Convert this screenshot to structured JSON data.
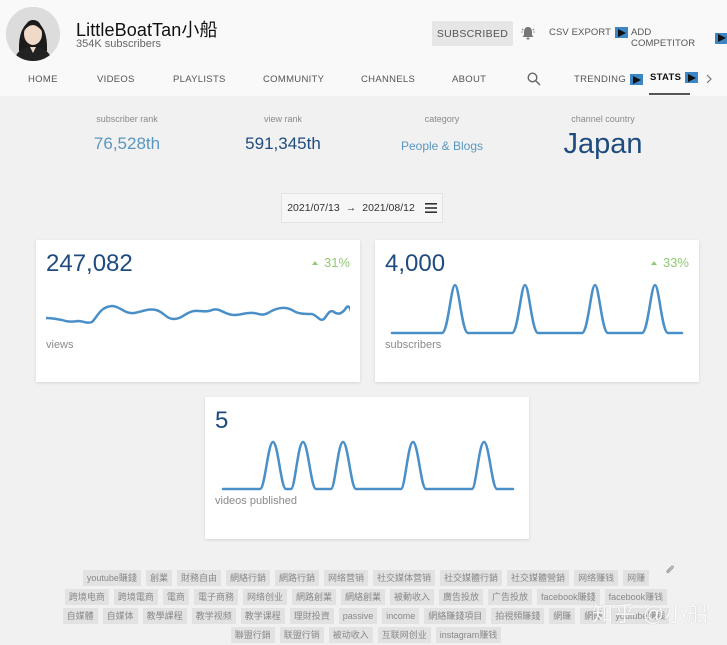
{
  "channel": {
    "name": "LittleBoatTan小船",
    "subscribers": "354K subscribers",
    "avatar": "avatar"
  },
  "header": {
    "subscribed_label": "SUBSCRIBED",
    "bell_icon": "bell-icon",
    "csv_export_label": "CSV EXPORT",
    "add_competitor_label": "ADD COMPETITOR"
  },
  "nav": {
    "items": [
      {
        "label": "HOME"
      },
      {
        "label": "VIDEOS"
      },
      {
        "label": "PLAYLISTS"
      },
      {
        "label": "COMMUNITY"
      },
      {
        "label": "CHANNELS"
      },
      {
        "label": "ABOUT"
      },
      {
        "label": "TRENDING"
      },
      {
        "label": "STATS",
        "active": true
      }
    ]
  },
  "stats": {
    "subscriber_rank": {
      "label": "subscriber rank",
      "value": "76,528th",
      "color": "#5a97c0"
    },
    "view_rank": {
      "label": "view rank",
      "value": "591,345th",
      "color": "#1f4b7e"
    },
    "category": {
      "label": "category",
      "value": "People & Blogs",
      "color": "#5a97c0"
    },
    "channel_country": {
      "label": "channel country",
      "value": "Japan",
      "color": "#1f4b7e"
    }
  },
  "date_range": {
    "start": "2021/07/13",
    "arrow": "→",
    "end": "2021/08/12"
  },
  "cards": {
    "views": {
      "value": "247,082",
      "change": "31%",
      "label": "views"
    },
    "subscribers": {
      "value": "4,000",
      "change": "33%",
      "label": "subscribers"
    },
    "videos": {
      "value": "5",
      "label": "videos published"
    }
  },
  "chart_data": [
    {
      "type": "line",
      "title": "views",
      "total": 247082,
      "change_pct": 31,
      "x": [
        "2021/07/13",
        "2021/08/12"
      ],
      "values": [
        6,
        5.5,
        5,
        5,
        4.7,
        8,
        9,
        7,
        7.5,
        8,
        5.8,
        5,
        7.5,
        7.5,
        8,
        6.5,
        6.5,
        7,
        6.5,
        8,
        8.5,
        7,
        6.5,
        5.5,
        7.5,
        7,
        9,
        3,
        13,
        6.5
      ],
      "note": "sparkline; no axes shown"
    },
    {
      "type": "line",
      "title": "subscribers",
      "total": 4000,
      "change_pct": 33,
      "values": [
        0,
        0,
        0,
        0,
        0,
        1000,
        0,
        0,
        0,
        0,
        0,
        0,
        1000,
        0,
        0,
        0,
        0,
        0,
        0,
        1000,
        0,
        0,
        0,
        0,
        0,
        1000,
        0,
        0,
        0,
        0
      ],
      "note": "four equal spikes; sparkline"
    },
    {
      "type": "line",
      "title": "videos published",
      "total": 5,
      "values": [
        0,
        0,
        0,
        0,
        1,
        0,
        1,
        0,
        0,
        1,
        0,
        0,
        0,
        0,
        0,
        1,
        0,
        0,
        0,
        0,
        0,
        0,
        1,
        0,
        0
      ],
      "note": "five equal spikes; sparkline"
    }
  ],
  "tags": [
    "youtube賺錢",
    "創業",
    "財務自由",
    "網絡行銷",
    "網路行銷",
    "网络营销",
    "社交媒体营销",
    "社交媒體行銷",
    "社交媒體營銷",
    "网络赚钱",
    "网赚",
    "跨境电商",
    "跨境電商",
    "電商",
    "電子商務",
    "网络创业",
    "網路創業",
    "網絡創業",
    "被動收入",
    "廣告投放",
    "广告投放",
    "facebook賺錢",
    "facebook赚钱",
    "自媒體",
    "自媒体",
    "教學課程",
    "教学视频",
    "教学课程",
    "理財投資",
    "passive",
    "income",
    "網絡賺錢項目",
    "拍視頻賺錢",
    "網賺",
    "網賺",
    "youtube赚钱",
    "聯盟行銷",
    "联盟行销",
    "被动收入",
    "互联网创业",
    "instagram赚钱"
  ],
  "watermark": "知乎 @小船"
}
